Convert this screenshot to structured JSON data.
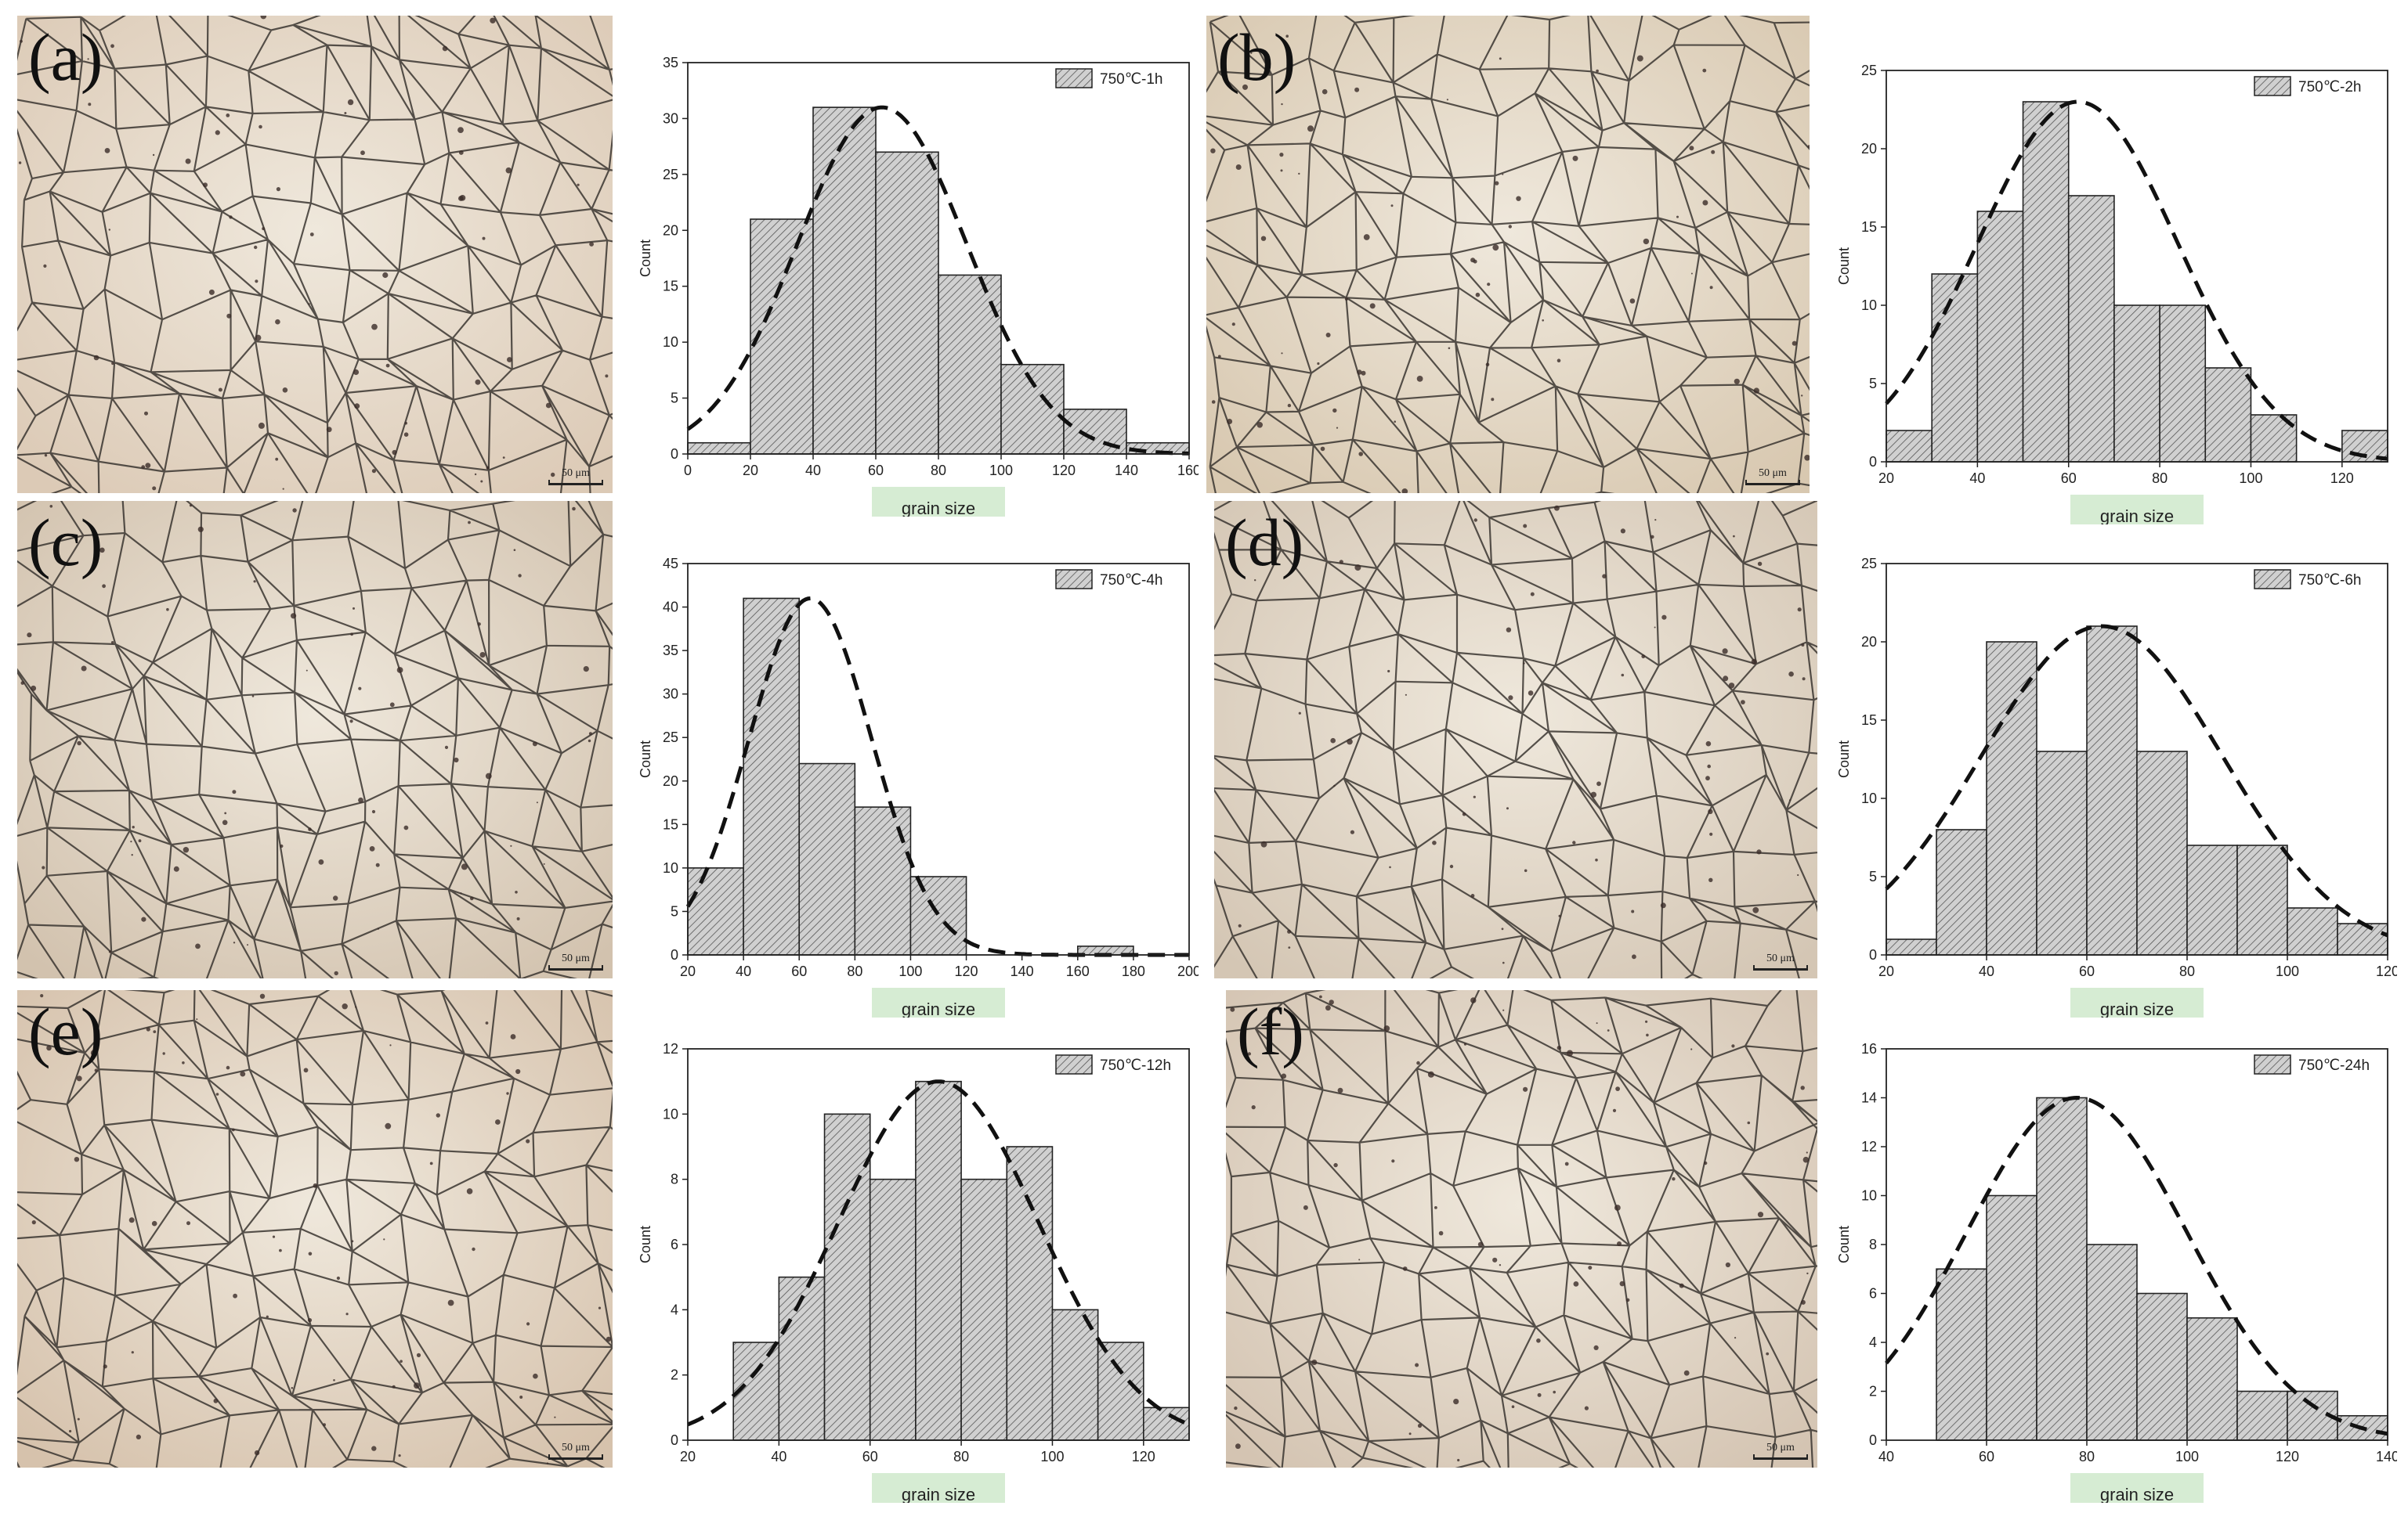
{
  "panels": [
    {
      "label": "(a)",
      "scale_text": "50 μm"
    },
    {
      "label": "(b)",
      "scale_text": "50 μm"
    },
    {
      "label": "(c)",
      "scale_text": "50 μm"
    },
    {
      "label": "(d)",
      "scale_text": "50 μm"
    },
    {
      "label": "(e)",
      "scale_text": "50 μm"
    },
    {
      "label": "(f)",
      "scale_text": "50 μm"
    }
  ],
  "colors": {
    "bars": "#d0d0d0",
    "fit": "#111111",
    "xlabel_bg": "#d6ecd3"
  },
  "chart_data": [
    {
      "type": "bar",
      "legend": "750℃-1h",
      "legend_position": "top-right",
      "xlabel": "grain size",
      "ylabel": "Count",
      "xlim": [
        0,
        160
      ],
      "ylim": [
        0,
        35
      ],
      "xticks": [
        0,
        20,
        40,
        60,
        80,
        100,
        120,
        140,
        160
      ],
      "yticks": [
        0,
        5,
        10,
        15,
        20,
        25,
        30,
        35
      ],
      "bin_width": 20,
      "bin_starts": [
        0,
        20,
        40,
        60,
        80,
        100,
        120,
        140
      ],
      "values": [
        1,
        21,
        31,
        27,
        16,
        8,
        4,
        1
      ],
      "fit": {
        "mean": 62,
        "sd": 27,
        "peak": 31
      }
    },
    {
      "type": "bar",
      "legend": "750℃-2h",
      "legend_position": "top-right",
      "xlabel": "grain size",
      "ylabel": "Count",
      "xlim": [
        20,
        130
      ],
      "ylim": [
        0,
        25
      ],
      "xticks": [
        20,
        40,
        60,
        80,
        100,
        120
      ],
      "yticks": [
        0,
        5,
        10,
        15,
        20,
        25
      ],
      "bin_width": 10,
      "bin_starts": [
        20,
        30,
        40,
        50,
        60,
        70,
        80,
        90,
        100,
        110,
        120
      ],
      "values": [
        2,
        12,
        16,
        23,
        17,
        10,
        10,
        6,
        3,
        0,
        2
      ],
      "fit": {
        "mean": 62,
        "sd": 22,
        "peak": 23
      }
    },
    {
      "type": "bar",
      "legend": "750℃-4h",
      "legend_position": "top-right",
      "xlabel": "grain size",
      "ylabel": "Count",
      "xlim": [
        20,
        200
      ],
      "ylim": [
        0,
        45
      ],
      "xticks": [
        20,
        40,
        60,
        80,
        100,
        120,
        140,
        160,
        180,
        200
      ],
      "yticks": [
        0,
        5,
        10,
        15,
        20,
        25,
        30,
        35,
        40,
        45
      ],
      "bin_width": 20,
      "bin_starts": [
        20,
        40,
        60,
        80,
        100,
        120,
        140,
        160
      ],
      "values": [
        10,
        41,
        22,
        17,
        9,
        0,
        0,
        1
      ],
      "fit": {
        "mean": 64,
        "sd": 22,
        "peak": 41
      }
    },
    {
      "type": "bar",
      "legend": "750℃-6h",
      "legend_position": "top-right",
      "xlabel": "grain size",
      "ylabel": "Count",
      "xlim": [
        20,
        120
      ],
      "ylim": [
        0,
        25
      ],
      "xticks": [
        20,
        40,
        60,
        80,
        100,
        120
      ],
      "yticks": [
        0,
        5,
        10,
        15,
        20,
        25
      ],
      "bin_width": 10,
      "bin_starts": [
        20,
        30,
        40,
        50,
        60,
        70,
        80,
        90,
        100,
        110
      ],
      "values": [
        1,
        8,
        20,
        13,
        21,
        13,
        7,
        7,
        3,
        2
      ],
      "fit": {
        "mean": 63,
        "sd": 24,
        "peak": 21
      }
    },
    {
      "type": "bar",
      "legend": "750℃-12h",
      "legend_position": "top-right",
      "xlabel": "grain size",
      "ylabel": "Count",
      "xlim": [
        20,
        130
      ],
      "ylim": [
        0,
        12
      ],
      "xticks": [
        20,
        40,
        60,
        80,
        100,
        120
      ],
      "yticks": [
        0,
        2,
        4,
        6,
        8,
        10,
        12
      ],
      "bin_width": 10,
      "bin_starts": [
        30,
        40,
        50,
        60,
        70,
        80,
        90,
        100,
        110,
        120
      ],
      "values": [
        3,
        5,
        10,
        8,
        11,
        8,
        9,
        4,
        3,
        1
      ],
      "fit": {
        "mean": 75,
        "sd": 22,
        "peak": 11
      }
    },
    {
      "type": "bar",
      "legend": "750℃-24h",
      "legend_position": "top-right",
      "xlabel": "grain size",
      "ylabel": "Count",
      "xlim": [
        40,
        140
      ],
      "ylim": [
        0,
        16
      ],
      "xticks": [
        40,
        60,
        80,
        100,
        120,
        140
      ],
      "yticks": [
        0,
        2,
        4,
        6,
        8,
        10,
        12,
        14,
        16
      ],
      "bin_width": 10,
      "bin_starts": [
        50,
        60,
        70,
        80,
        90,
        100,
        110,
        120,
        130
      ],
      "values": [
        7,
        10,
        14,
        8,
        6,
        5,
        2,
        2,
        1
      ],
      "fit": {
        "mean": 78,
        "sd": 22,
        "peak": 14
      }
    }
  ]
}
